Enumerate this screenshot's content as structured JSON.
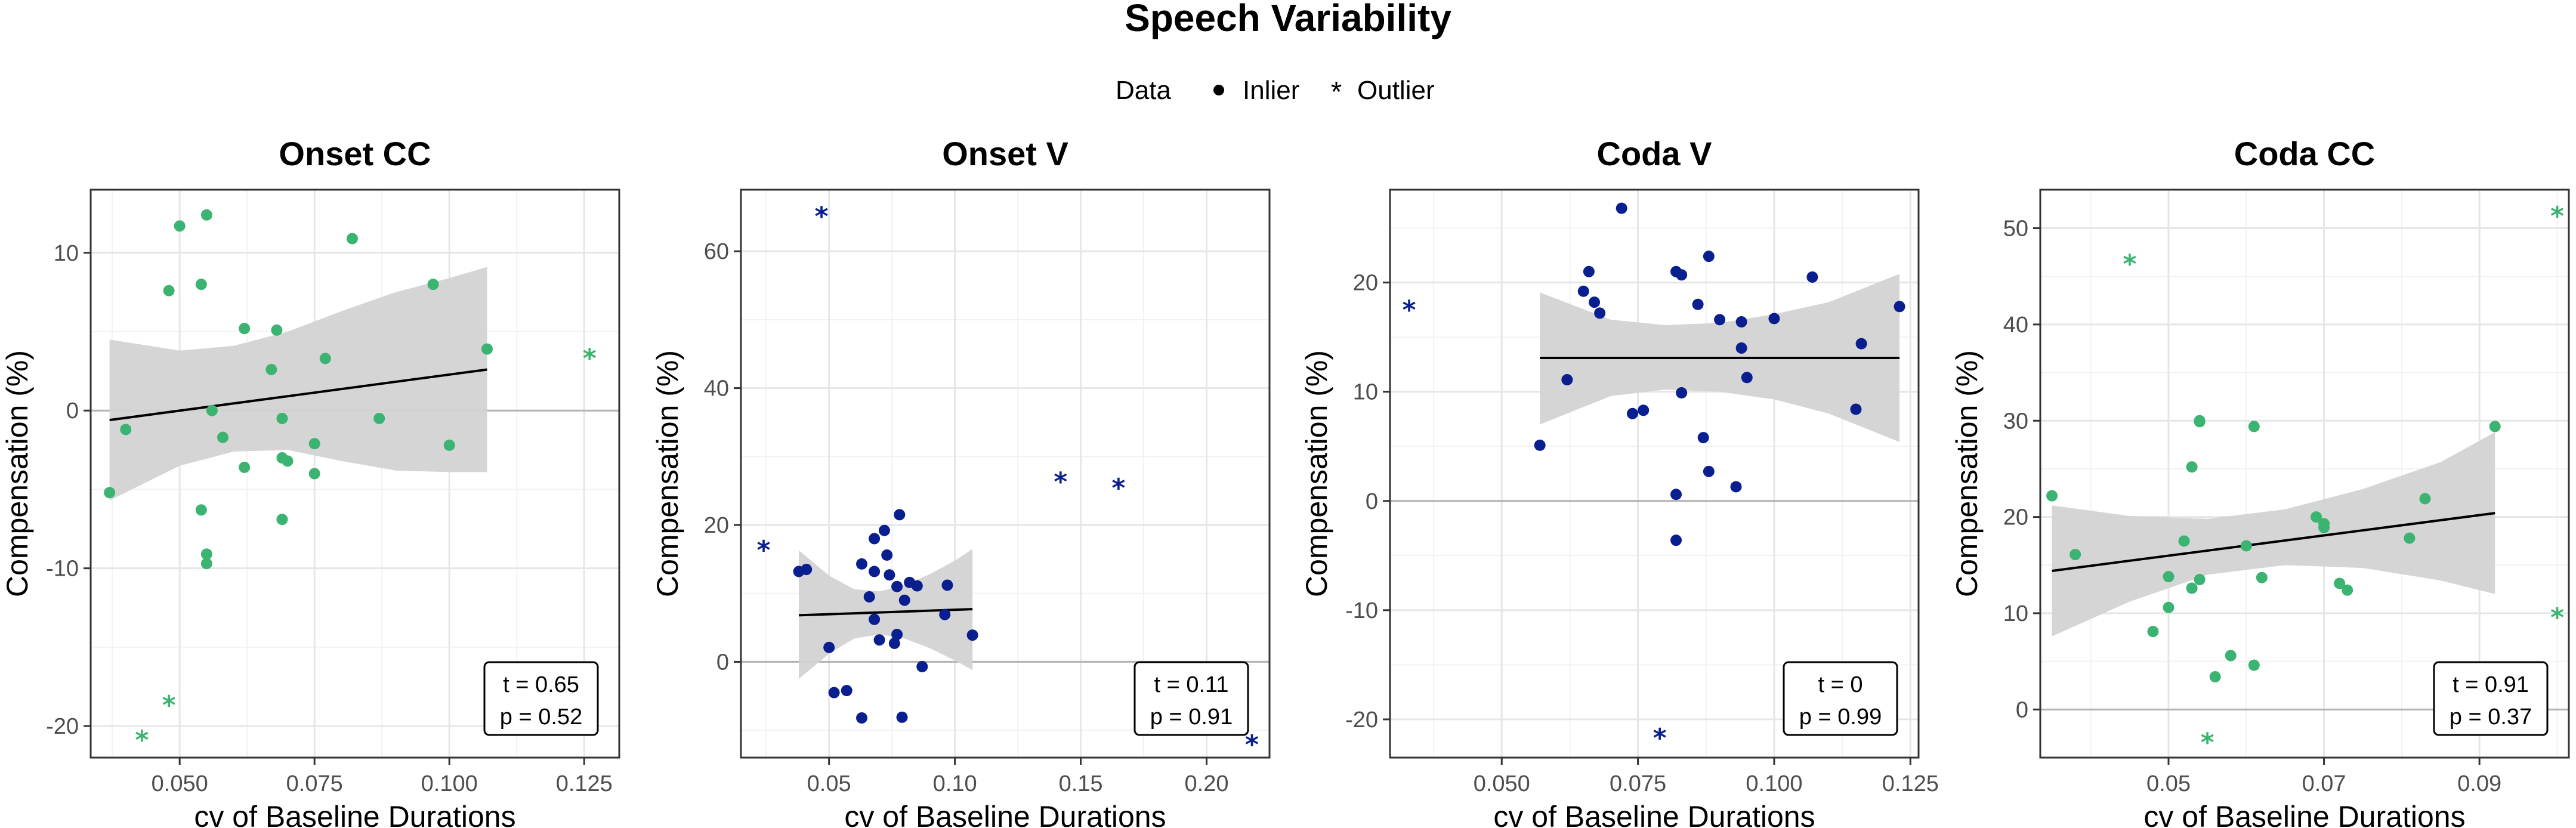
{
  "figure": {
    "title": "Speech Variability",
    "legend": {
      "title": "Data",
      "items": [
        {
          "label": "Inlier",
          "shape": "dot"
        },
        {
          "label": "Outlier",
          "shape": "asterisk"
        }
      ]
    }
  },
  "chart_data": [
    {
      "type": "scatter",
      "title": "Onset CC",
      "xlabel": "cv of Baseline Durations",
      "ylabel": "Compensation (%)",
      "color": "#3bb371",
      "xlim": [
        0.0335,
        0.1315
      ],
      "ylim": [
        -22,
        14
      ],
      "xticks": [
        0.05,
        0.075,
        0.1,
        0.125
      ],
      "xtick_labels": [
        "0.050",
        "0.075",
        "0.100",
        "0.125"
      ],
      "yticks": [
        -20,
        -10,
        0,
        10
      ],
      "ytick_labels": [
        "-20",
        "-10",
        "0",
        "10"
      ],
      "inliers": [
        [
          0.037,
          -5.2
        ],
        [
          0.04,
          -1.2
        ],
        [
          0.048,
          7.6
        ],
        [
          0.05,
          11.7
        ],
        [
          0.054,
          8
        ],
        [
          0.055,
          12.4
        ],
        [
          0.056,
          0
        ],
        [
          0.058,
          -1.7
        ],
        [
          0.054,
          -6.3
        ],
        [
          0.055,
          -9.1
        ],
        [
          0.055,
          -9.7
        ],
        [
          0.062,
          5.2
        ],
        [
          0.062,
          -3.6
        ],
        [
          0.067,
          2.6
        ],
        [
          0.068,
          5.1
        ],
        [
          0.069,
          -3
        ],
        [
          0.069,
          -0.5
        ],
        [
          0.07,
          -3.2
        ],
        [
          0.069,
          -6.9
        ],
        [
          0.075,
          -4
        ],
        [
          0.075,
          -2.1
        ],
        [
          0.077,
          3.3
        ],
        [
          0.082,
          10.9
        ],
        [
          0.087,
          -0.5
        ],
        [
          0.097,
          8
        ],
        [
          0.1,
          -2.2
        ],
        [
          0.107,
          3.9
        ]
      ],
      "outliers": [
        [
          0.043,
          -20.8
        ],
        [
          0.048,
          -18.6
        ],
        [
          0.126,
          3.4
        ]
      ],
      "fit": {
        "x0": 0.037,
        "x1": 0.107,
        "y0": -0.6,
        "y1": 2.6
      },
      "band": {
        "lower": [
          [
            0.037,
            -5.7
          ],
          [
            0.05,
            -3.5
          ],
          [
            0.06,
            -2.6
          ],
          [
            0.07,
            -2.5
          ],
          [
            0.08,
            -3.2
          ],
          [
            0.09,
            -3.8
          ],
          [
            0.1,
            -3.9
          ],
          [
            0.107,
            -3.9
          ]
        ],
        "upper": [
          [
            0.037,
            4.5
          ],
          [
            0.05,
            3.8
          ],
          [
            0.06,
            4.1
          ],
          [
            0.07,
            5
          ],
          [
            0.08,
            6.3
          ],
          [
            0.09,
            7.5
          ],
          [
            0.1,
            8.4
          ],
          [
            0.107,
            9.1
          ]
        ]
      },
      "stats": {
        "t": "t = 0.65",
        "p": "p = 0.52"
      }
    },
    {
      "type": "scatter",
      "title": "Onset V",
      "xlabel": "cv of Baseline Durations",
      "ylabel": "Compensation (%)",
      "color": "#0a1f8f",
      "xlim": [
        0.015,
        0.225
      ],
      "ylim": [
        -14,
        69
      ],
      "xticks": [
        0.05,
        0.1,
        0.15,
        0.2
      ],
      "xtick_labels": [
        "0.05",
        "0.10",
        "0.15",
        "0.20"
      ],
      "yticks": [
        0,
        20,
        40,
        60
      ],
      "ytick_labels": [
        "0",
        "20",
        "40",
        "60"
      ],
      "inliers": [
        [
          0.038,
          13.2
        ],
        [
          0.041,
          13.5
        ],
        [
          0.05,
          2.1
        ],
        [
          0.052,
          -4.5
        ],
        [
          0.057,
          -4.2
        ],
        [
          0.063,
          -8.2
        ],
        [
          0.063,
          14.3
        ],
        [
          0.066,
          9.5
        ],
        [
          0.068,
          13.2
        ],
        [
          0.068,
          18
        ],
        [
          0.068,
          6.2
        ],
        [
          0.07,
          3.2
        ],
        [
          0.072,
          19.2
        ],
        [
          0.073,
          15.6
        ],
        [
          0.074,
          12.7
        ],
        [
          0.076,
          2.7
        ],
        [
          0.077,
          4
        ],
        [
          0.077,
          11
        ],
        [
          0.078,
          21.5
        ],
        [
          0.079,
          -8.1
        ],
        [
          0.08,
          9
        ],
        [
          0.082,
          11.6
        ],
        [
          0.085,
          11.1
        ],
        [
          0.087,
          -0.7
        ],
        [
          0.096,
          6.9
        ],
        [
          0.097,
          11.2
        ],
        [
          0.107,
          3.9
        ]
      ],
      "outliers": [
        [
          0.024,
          16.5
        ],
        [
          0.047,
          65.3
        ],
        [
          0.142,
          26.5
        ],
        [
          0.165,
          25.6
        ],
        [
          0.218,
          -11.9
        ]
      ],
      "fit": {
        "x0": 0.038,
        "x1": 0.107,
        "y0": 6.8,
        "y1": 7.7
      },
      "band": {
        "lower": [
          [
            0.038,
            -2.5
          ],
          [
            0.05,
            1.2
          ],
          [
            0.06,
            3.4
          ],
          [
            0.07,
            4
          ],
          [
            0.08,
            3.4
          ],
          [
            0.09,
            2
          ],
          [
            0.1,
            0.2
          ],
          [
            0.107,
            -1.2
          ]
        ],
        "upper": [
          [
            0.038,
            16.3
          ],
          [
            0.05,
            12.6
          ],
          [
            0.06,
            10.6
          ],
          [
            0.07,
            10.3
          ],
          [
            0.08,
            11.2
          ],
          [
            0.09,
            12.8
          ],
          [
            0.1,
            14.8
          ],
          [
            0.107,
            16.5
          ]
        ]
      },
      "stats": {
        "t": "t = 0.11",
        "p": "p = 0.91"
      }
    },
    {
      "type": "scatter",
      "title": "Coda V",
      "xlabel": "cv of Baseline Durations",
      "ylabel": "Compensation (%)",
      "color": "#0a1f8f",
      "xlim": [
        0.0295,
        0.1265
      ],
      "ylim": [
        -23.5,
        28.5
      ],
      "xticks": [
        0.05,
        0.075,
        0.1,
        0.125
      ],
      "xtick_labels": [
        "0.050",
        "0.075",
        "0.100",
        "0.125"
      ],
      "yticks": [
        -20,
        -10,
        0,
        10,
        20
      ],
      "ytick_labels": [
        "-20",
        "-10",
        "0",
        "10",
        "20"
      ],
      "inliers": [
        [
          0.057,
          5.1
        ],
        [
          0.062,
          11.1
        ],
        [
          0.065,
          19.2
        ],
        [
          0.066,
          21
        ],
        [
          0.067,
          18.2
        ],
        [
          0.068,
          17.2
        ],
        [
          0.072,
          26.8
        ],
        [
          0.074,
          8
        ],
        [
          0.076,
          8.3
        ],
        [
          0.082,
          21
        ],
        [
          0.083,
          20.7
        ],
        [
          0.083,
          9.9
        ],
        [
          0.082,
          0.6
        ],
        [
          0.082,
          -3.6
        ],
        [
          0.086,
          18
        ],
        [
          0.087,
          5.8
        ],
        [
          0.088,
          22.4
        ],
        [
          0.088,
          2.7
        ],
        [
          0.09,
          16.6
        ],
        [
          0.093,
          1.3
        ],
        [
          0.094,
          16.4
        ],
        [
          0.094,
          14
        ],
        [
          0.095,
          11.3
        ],
        [
          0.1,
          16.7
        ],
        [
          0.107,
          20.5
        ],
        [
          0.115,
          8.4
        ],
        [
          0.116,
          14.4
        ],
        [
          0.123,
          17.8
        ]
      ],
      "outliers": [
        [
          0.033,
          17.6
        ],
        [
          0.079,
          -21.6
        ]
      ],
      "fit": {
        "x0": 0.057,
        "x1": 0.123,
        "y0": 13.1,
        "y1": 13.1
      },
      "band": {
        "lower": [
          [
            0.057,
            7
          ],
          [
            0.07,
            9.6
          ],
          [
            0.08,
            10.2
          ],
          [
            0.09,
            10
          ],
          [
            0.1,
            9.3
          ],
          [
            0.11,
            8
          ],
          [
            0.123,
            5.4
          ]
        ],
        "upper": [
          [
            0.057,
            19.1
          ],
          [
            0.07,
            16.6
          ],
          [
            0.08,
            16.1
          ],
          [
            0.09,
            16.3
          ],
          [
            0.1,
            17.1
          ],
          [
            0.11,
            18.2
          ],
          [
            0.123,
            20.8
          ]
        ]
      },
      "stats": {
        "t": "t = 0",
        "p": "p = 0.99"
      }
    },
    {
      "type": "scatter",
      "title": "Coda CC",
      "xlabel": "cv of Baseline Durations",
      "ylabel": "Compensation (%)",
      "color": "#3bb371",
      "xlim": [
        0.0335,
        0.1015
      ],
      "ylim": [
        -5,
        54
      ],
      "xticks": [
        0.05,
        0.07,
        0.09
      ],
      "xtick_labels": [
        "0.05",
        "0.07",
        "0.09"
      ],
      "yticks": [
        0,
        10,
        20,
        30,
        40,
        50
      ],
      "ytick_labels": [
        "0",
        "10",
        "20",
        "30",
        "40",
        "50"
      ],
      "inliers": [
        [
          0.035,
          22.2
        ],
        [
          0.038,
          16.1
        ],
        [
          0.048,
          8.1
        ],
        [
          0.05,
          10.6
        ],
        [
          0.05,
          13.8
        ],
        [
          0.052,
          17.5
        ],
        [
          0.053,
          25.2
        ],
        [
          0.053,
          12.6
        ],
        [
          0.054,
          29.9
        ],
        [
          0.054,
          30
        ],
        [
          0.054,
          13.5
        ],
        [
          0.056,
          3.4
        ],
        [
          0.058,
          5.6
        ],
        [
          0.06,
          17
        ],
        [
          0.061,
          4.6
        ],
        [
          0.061,
          29.4
        ],
        [
          0.062,
          13.7
        ],
        [
          0.069,
          20
        ],
        [
          0.07,
          19.3
        ],
        [
          0.07,
          18.9
        ],
        [
          0.072,
          13.1
        ],
        [
          0.073,
          12.4
        ],
        [
          0.081,
          17.8
        ],
        [
          0.083,
          21.9
        ],
        [
          0.092,
          29.4
        ]
      ],
      "outliers": [
        [
          0.045,
          46.4
        ],
        [
          0.055,
          -3.3
        ],
        [
          0.1,
          9.7
        ],
        [
          0.1,
          51.4
        ]
      ],
      "fit": {
        "x0": 0.035,
        "x1": 0.092,
        "y0": 14.4,
        "y1": 20.4
      },
      "band": {
        "lower": [
          [
            0.035,
            7.6
          ],
          [
            0.045,
            11.2
          ],
          [
            0.055,
            14
          ],
          [
            0.065,
            15
          ],
          [
            0.075,
            14.7
          ],
          [
            0.085,
            13.4
          ],
          [
            0.092,
            12
          ]
        ],
        "upper": [
          [
            0.035,
            21.2
          ],
          [
            0.045,
            20.1
          ],
          [
            0.055,
            19.8
          ],
          [
            0.065,
            20.8
          ],
          [
            0.075,
            22.9
          ],
          [
            0.085,
            25.7
          ],
          [
            0.092,
            28.8
          ]
        ]
      },
      "stats": {
        "t": "t = 0.91",
        "p": "p = 0.37"
      }
    }
  ]
}
